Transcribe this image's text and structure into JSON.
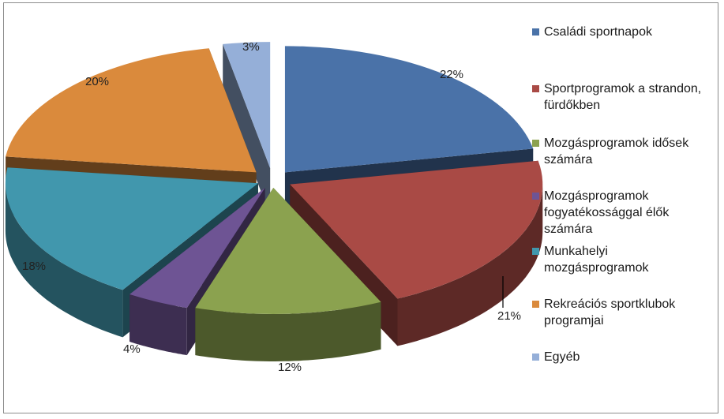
{
  "chart_data": {
    "type": "pie",
    "style": "3d-exploded",
    "categories": [
      "Családi sportnapok",
      "Sportprogramok a strandon, fürdőkben",
      "Mozgásprogramok idősek számára",
      "Mozgásprogramok fogyatékossággal élők számára",
      "Munkahelyi mozgásprogramok",
      "Rekreációs sportklubok programjai",
      "Egyéb"
    ],
    "values": [
      22,
      21,
      12,
      4,
      18,
      20,
      3
    ],
    "value_labels": [
      "22%",
      "21%",
      "12%",
      "4%",
      "18%",
      "20%",
      "3%"
    ],
    "colors": [
      "#4A72A8",
      "#A94A45",
      "#8BA24F",
      "#6E5494",
      "#4197AD",
      "#DA8A3C",
      "#95AFD8"
    ],
    "legend_position": "right"
  }
}
